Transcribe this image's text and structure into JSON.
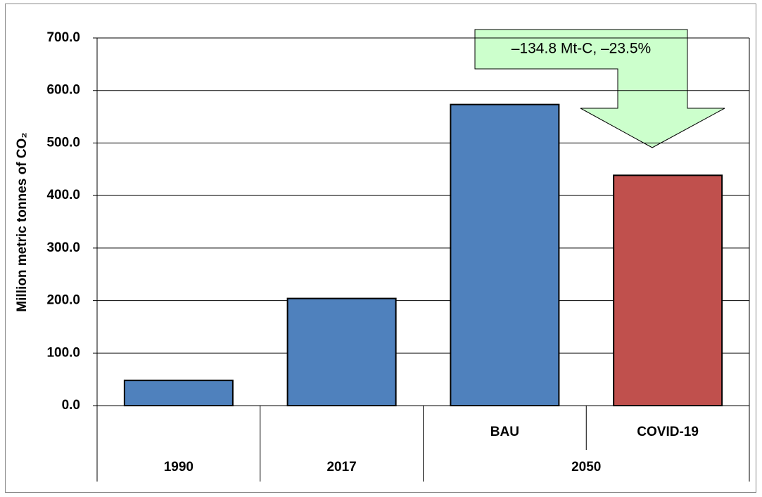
{
  "chart_data": {
    "type": "bar",
    "y_label": "Million metric tonnes of CO₂",
    "annotation": "–134.8 Mt-C, –23.5%",
    "groups": [
      {
        "label": "1990",
        "categories": [
          null
        ]
      },
      {
        "label": "2017",
        "categories": [
          null
        ]
      },
      {
        "label": "2050",
        "categories": [
          "BAU",
          "COVID-19"
        ]
      }
    ],
    "values": [
      48,
      204,
      573.3,
      438.5
    ],
    "colors": [
      "#4f81bd",
      "#4f81bd",
      "#4f81bd",
      "#c0504d"
    ],
    "ylim": [
      0,
      700
    ],
    "yticks": [
      {
        "value": 0,
        "label": "0.0"
      },
      {
        "value": 100,
        "label": "100.0"
      },
      {
        "value": 200,
        "label": "200.0"
      },
      {
        "value": 300,
        "label": "300.0"
      },
      {
        "value": 400,
        "label": "400.0"
      },
      {
        "value": 500,
        "label": "500.0"
      },
      {
        "value": 600,
        "label": "600.0"
      },
      {
        "value": 700,
        "label": "700.0"
      }
    ],
    "grid": true
  }
}
